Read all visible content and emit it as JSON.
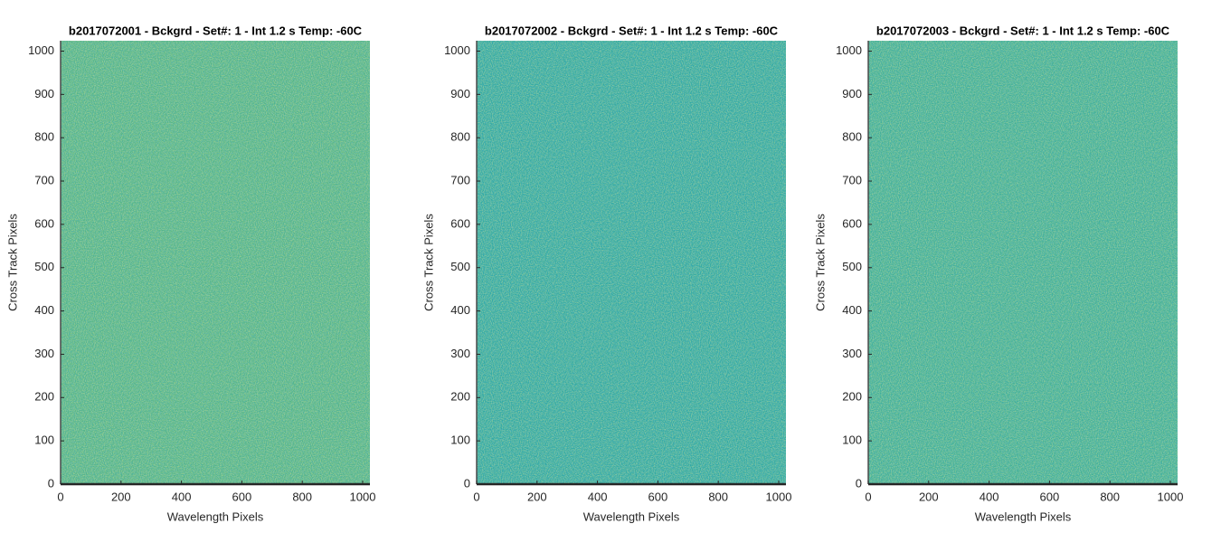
{
  "chart_data": [
    {
      "type": "image",
      "title": "b2017072001 - Bckgrd - Set#: 1 - Int 1.2 s Temp: -60C",
      "xlabel": "Wavelength Pixels",
      "ylabel": "Cross Track Pixels",
      "xlim": [
        0,
        1024
      ],
      "ylim": [
        0,
        1024
      ],
      "xticks": [
        0,
        200,
        400,
        600,
        800,
        1000
      ],
      "yticks": [
        0,
        100,
        200,
        300,
        400,
        500,
        600,
        700,
        800,
        900,
        1000
      ]
    },
    {
      "type": "image",
      "title": "b2017072002 - Bckgrd - Set#: 1 - Int 1.2 s Temp: -60C",
      "xlabel": "Wavelength Pixels",
      "ylabel": "Cross Track Pixels",
      "xlim": [
        0,
        1024
      ],
      "ylim": [
        0,
        1024
      ],
      "xticks": [
        0,
        200,
        400,
        600,
        800,
        1000
      ],
      "yticks": [
        0,
        100,
        200,
        300,
        400,
        500,
        600,
        700,
        800,
        900,
        1000
      ]
    },
    {
      "type": "image",
      "title": "b2017072003 - Bckgrd - Set#: 1 - Int 1.2 s Temp: -60C",
      "xlabel": "Wavelength Pixels",
      "ylabel": "Cross Track Pixels",
      "xlim": [
        0,
        1024
      ],
      "ylim": [
        0,
        1024
      ],
      "xticks": [
        0,
        200,
        400,
        600,
        800,
        1000
      ],
      "yticks": [
        0,
        100,
        200,
        300,
        400,
        500,
        600,
        700,
        800,
        900,
        1000
      ]
    }
  ]
}
